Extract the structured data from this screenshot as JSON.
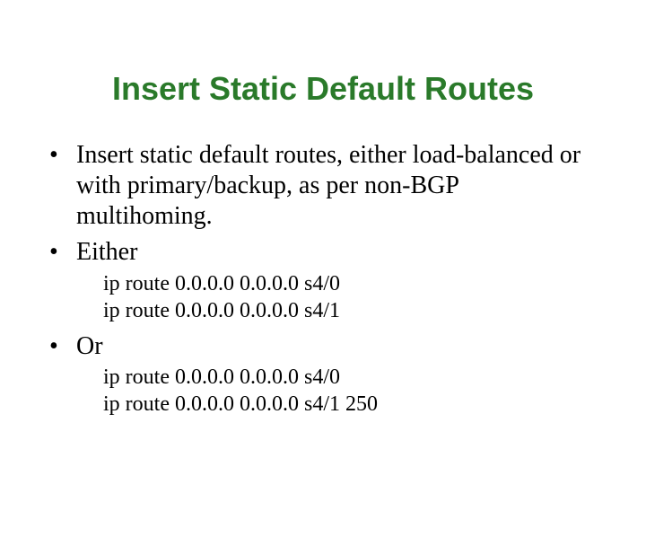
{
  "slide": {
    "title": "Insert Static Default Routes",
    "title_color": "#2a7a2a",
    "title_fontsize": 36,
    "body_fontsize": 28,
    "sub_fontsize": 24,
    "body_lineheight": 1.22,
    "background_color": "#ffffff",
    "text_color": "#000000",
    "bullets": [
      {
        "text": "Insert static default routes, either load-balanced or with primary/backup, as per non-BGP multihoming.",
        "sub": []
      },
      {
        "text": "Either",
        "sub": [
          "ip route 0.0.0.0 0.0.0.0 s4/0",
          "ip route 0.0.0.0 0.0.0.0 s4/1"
        ]
      },
      {
        "text": "Or",
        "sub": [
          "ip route 0.0.0.0 0.0.0.0 s4/0",
          "ip route 0.0.0.0 0.0.0.0 s4/1 250"
        ]
      }
    ]
  }
}
